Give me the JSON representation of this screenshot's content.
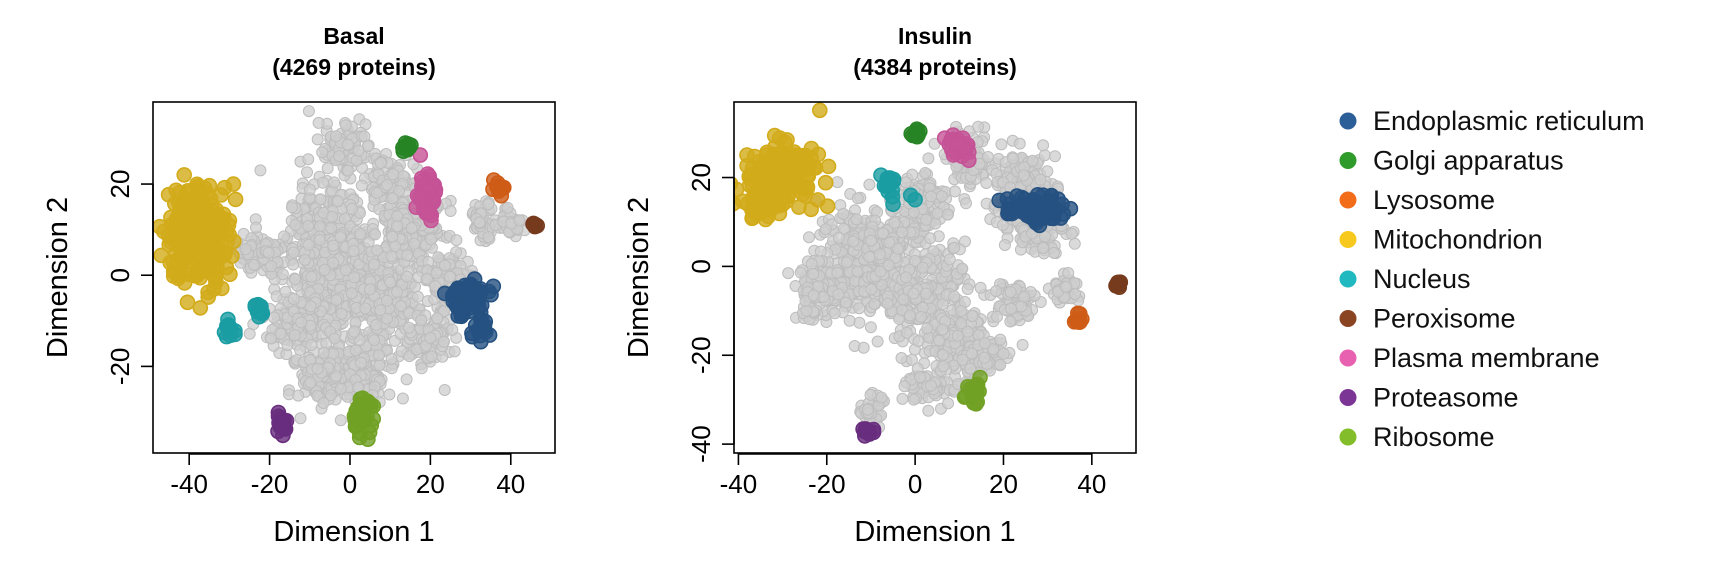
{
  "chart_data": [
    {
      "type": "scatter",
      "title": "Basal",
      "subtitle": "(4269 proteins)",
      "xlabel": "Dimension 1",
      "ylabel": "Dimension 2",
      "xlim": [
        -49,
        51
      ],
      "ylim": [
        -39,
        38
      ],
      "xticks": [
        -40,
        -20,
        0,
        20,
        40
      ],
      "yticks": [
        -20,
        0,
        20
      ],
      "grid": false,
      "background_regions": [
        {
          "cx": -6,
          "cy": 3,
          "rx": 10,
          "ry": 19
        },
        {
          "cx": 8,
          "cy": -4,
          "rx": 11,
          "ry": 14
        },
        {
          "cx": -2,
          "cy": 28,
          "rx": 6,
          "ry": 5
        },
        {
          "cx": 10,
          "cy": 20,
          "rx": 6,
          "ry": 6
        },
        {
          "cx": -22,
          "cy": 4,
          "rx": 7,
          "ry": 5
        },
        {
          "cx": -14,
          "cy": -10,
          "rx": 8,
          "ry": 5
        },
        {
          "cx": 18,
          "cy": 10,
          "rx": 6,
          "ry": 6
        },
        {
          "cx": 24,
          "cy": -2,
          "rx": 6,
          "ry": 7
        },
        {
          "cx": 0,
          "cy": -22,
          "rx": 11,
          "ry": 7
        },
        {
          "cx": -8,
          "cy": -22,
          "rx": 5,
          "ry": 5
        },
        {
          "cx": 20,
          "cy": -15,
          "rx": 5,
          "ry": 5
        },
        {
          "cx": 33,
          "cy": 12,
          "rx": 3,
          "ry": 4
        },
        {
          "cx": 40,
          "cy": 12,
          "rx": 3,
          "ry": 3
        },
        {
          "cx": 13,
          "cy": 10,
          "rx": 4,
          "ry": 5
        }
      ],
      "series": [
        {
          "name": "Mitochondrion",
          "color": "#F7C91E",
          "clusters": [
            {
              "cx": -38,
              "cy": 9,
              "rx": 7,
              "ry": 10
            }
          ],
          "extra": [
            [
              -29,
              20
            ],
            [
              -30,
              12
            ],
            [
              -31,
              5
            ]
          ]
        },
        {
          "name": "Plasma membrane",
          "color": "#E861B0",
          "clusters": [
            {
              "cx": 19,
              "cy": 18,
              "rx": 2.2,
              "ry": 5
            }
          ]
        },
        {
          "name": "Golgi apparatus",
          "color": "#2E9B2B",
          "clusters": [
            {
              "cx": 14,
              "cy": 28,
              "rx": 1.2,
              "ry": 1.2
            }
          ]
        },
        {
          "name": "Endoplasmic reticulum",
          "color": "#2C5F98",
          "clusters": [
            {
              "cx": 29,
              "cy": -5,
              "rx": 5,
              "ry": 3.5
            },
            {
              "cx": 32,
              "cy": -12,
              "rx": 2.5,
              "ry": 2
            }
          ]
        },
        {
          "name": "Lysosome",
          "color": "#F26C1A",
          "clusters": [
            {
              "cx": 37,
              "cy": 19,
              "rx": 1.5,
              "ry": 1.2
            }
          ]
        },
        {
          "name": "Peroxisome",
          "color": "#8B4422",
          "clusters": [
            {
              "cx": 46,
              "cy": 11,
              "rx": 0.8,
              "ry": 0.6
            }
          ]
        },
        {
          "name": "Nucleus",
          "color": "#1FB9BF",
          "clusters": [
            {
              "cx": -30,
              "cy": -12,
              "rx": 1.2,
              "ry": 1.5
            },
            {
              "cx": -23,
              "cy": -8,
              "rx": 1.2,
              "ry": 1.5
            }
          ]
        },
        {
          "name": "Proteasome",
          "color": "#7B3594",
          "clusters": [
            {
              "cx": -17,
              "cy": -33,
              "rx": 1.5,
              "ry": 2
            }
          ]
        },
        {
          "name": "Ribosome",
          "color": "#84BD2A",
          "clusters": [
            {
              "cx": 3,
              "cy": -31,
              "rx": 2.5,
              "ry": 3.5
            }
          ]
        },
        {
          "name": "Ribosome",
          "color": "#84BD2A",
          "clusters": []
        },
        {
          "name": "Endoplasmic reticulum",
          "color": "#2C5F98",
          "clusters": []
        }
      ]
    },
    {
      "type": "scatter",
      "title": "Insulin",
      "subtitle": "(4384 proteins)",
      "xlabel": "Dimension 1",
      "ylabel": "Dimension 2",
      "xlim": [
        -41,
        50
      ],
      "ylim": [
        -42,
        37
      ],
      "xticks": [
        -40,
        -20,
        0,
        20,
        40
      ],
      "yticks": [
        -40,
        -20,
        0,
        20
      ],
      "grid": false,
      "background_regions": [
        {
          "cx": -12,
          "cy": 2,
          "rx": 10,
          "ry": 12
        },
        {
          "cx": 2,
          "cy": -6,
          "rx": 10,
          "ry": 11
        },
        {
          "cx": 10,
          "cy": -18,
          "rx": 8,
          "ry": 8
        },
        {
          "cx": -22,
          "cy": -6,
          "rx": 6,
          "ry": 6
        },
        {
          "cx": 2,
          "cy": 14,
          "rx": 5,
          "ry": 8
        },
        {
          "cx": 12,
          "cy": 24,
          "rx": 5,
          "ry": 6
        },
        {
          "cx": 24,
          "cy": 18,
          "rx": 8,
          "ry": 8
        },
        {
          "cx": 28,
          "cy": 8,
          "rx": 6,
          "ry": 5
        },
        {
          "cx": 22,
          "cy": -8,
          "rx": 5,
          "ry": 5
        },
        {
          "cx": 16,
          "cy": -20,
          "rx": 5,
          "ry": 4
        },
        {
          "cx": 4,
          "cy": -27,
          "rx": 6,
          "ry": 4
        },
        {
          "cx": -10,
          "cy": -32,
          "rx": 2.5,
          "ry": 3
        },
        {
          "cx": 34,
          "cy": -5,
          "rx": 3,
          "ry": 3
        },
        {
          "cx": -8,
          "cy": 5,
          "rx": 5,
          "ry": 6
        }
      ],
      "series": [
        {
          "name": "Mitochondrion",
          "color": "#F7C91E",
          "clusters": [
            {
              "cx": -30,
              "cy": 21,
              "rx": 8,
              "ry": 6
            },
            {
              "cx": -35,
              "cy": 15,
              "rx": 4,
              "ry": 4
            }
          ]
        },
        {
          "name": "Plasma membrane",
          "color": "#E861B0",
          "clusters": [
            {
              "cx": 10,
              "cy": 27,
              "rx": 2.5,
              "ry": 2.5
            }
          ]
        },
        {
          "name": "Golgi apparatus",
          "color": "#2E9B2B",
          "clusters": [
            {
              "cx": 0,
              "cy": 30,
              "rx": 1.5,
              "ry": 1.2
            }
          ]
        },
        {
          "name": "Nucleus",
          "color": "#1FB9BF",
          "clusters": [
            {
              "cx": -6,
              "cy": 18,
              "rx": 1.5,
              "ry": 2
            }
          ],
          "extra": [
            [
              -1,
              16
            ],
            [
              0,
              15
            ],
            [
              -5,
              14
            ]
          ]
        },
        {
          "name": "Endoplasmic reticulum",
          "color": "#2C5F98",
          "clusters": [
            {
              "cx": 27,
              "cy": 13,
              "rx": 6,
              "ry": 3
            }
          ]
        },
        {
          "name": "Peroxisome",
          "color": "#8B4422",
          "clusters": [
            {
              "cx": 46,
              "cy": -4,
              "rx": 0.6,
              "ry": 0.6
            }
          ]
        },
        {
          "name": "Lysosome",
          "color": "#F26C1A",
          "clusters": [
            {
              "cx": 37,
              "cy": -12,
              "rx": 1.3,
              "ry": 1
            }
          ]
        },
        {
          "name": "Ribosome",
          "color": "#84BD2A",
          "clusters": [
            {
              "cx": 13,
              "cy": -28,
              "rx": 1.5,
              "ry": 2.5
            }
          ]
        },
        {
          "name": "Proteasome",
          "color": "#7B3594",
          "clusters": [
            {
              "cx": -11,
              "cy": -37,
              "rx": 1.3,
              "ry": 1
            }
          ]
        }
      ]
    }
  ],
  "legend": {
    "placement": "right",
    "items": [
      {
        "label": "Endoplasmic reticulum",
        "color": "#2C5F98"
      },
      {
        "label": "Golgi apparatus",
        "color": "#2E9B2B"
      },
      {
        "label": "Lysosome",
        "color": "#F26C1A"
      },
      {
        "label": "Mitochondrion",
        "color": "#F7C91E"
      },
      {
        "label": "Nucleus",
        "color": "#1FB9BF"
      },
      {
        "label": "Peroxisome",
        "color": "#8B4422"
      },
      {
        "label": "Plasma membrane",
        "color": "#E861B0"
      },
      {
        "label": "Proteasome",
        "color": "#7B3594"
      },
      {
        "label": "Ribosome",
        "color": "#84BD2A"
      }
    ]
  },
  "background_point_color": "#CDCDCD"
}
